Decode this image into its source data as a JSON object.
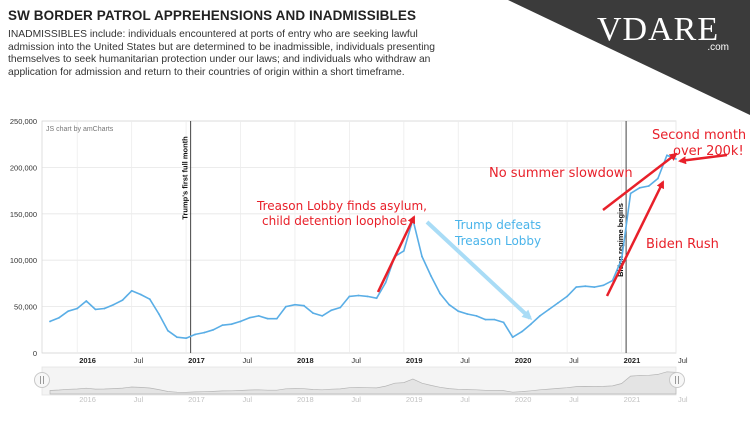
{
  "header": {
    "title": "SW BORDER PATROL APPREHENSIONS AND INADMISSIBLES",
    "description": "INADMISSIBLES include: individuals encountered at ports of entry who are seeking lawful admission into the United States but are determined to be inadmissible, individuals presenting themselves to seek humanitarian protection under our laws; and individuals who withdraw an application for admission and return to their countries of origin within a short timeframe."
  },
  "logo": {
    "name": "VDARE",
    "suffix": ".com",
    "colors": {
      "banner": "#3b3b3b",
      "text": "#ffffff"
    }
  },
  "chart_data": {
    "type": "line",
    "credit": "JS chart by amCharts",
    "x_start": "2015-10",
    "x_step": "month",
    "ylim": [
      0,
      250000
    ],
    "yticks": [
      "0",
      "50,000",
      "100,000",
      "150,000",
      "200,000",
      "250,000"
    ],
    "xticks": [
      {
        "label": "2016",
        "date": "2016-01",
        "bold": true
      },
      {
        "label": "Jul",
        "date": "2016-07",
        "bold": false
      },
      {
        "label": "2017",
        "date": "2017-01",
        "bold": true
      },
      {
        "label": "Jul",
        "date": "2017-07",
        "bold": false
      },
      {
        "label": "2018",
        "date": "2018-01",
        "bold": true
      },
      {
        "label": "Jul",
        "date": "2018-07",
        "bold": false
      },
      {
        "label": "2019",
        "date": "2019-01",
        "bold": true
      },
      {
        "label": "Jul",
        "date": "2019-07",
        "bold": false
      },
      {
        "label": "2020",
        "date": "2020-01",
        "bold": true
      },
      {
        "label": "Jul",
        "date": "2020-07",
        "bold": false
      },
      {
        "label": "2021",
        "date": "2021-01",
        "bold": true
      },
      {
        "label": "Jul",
        "date": "2021-07",
        "bold": false
      }
    ],
    "series": [
      {
        "color": "#5aaee6",
        "values": [
          34000,
          38000,
          45000,
          48000,
          56000,
          47000,
          48000,
          52000,
          57000,
          67000,
          63000,
          58000,
          42000,
          24000,
          17000,
          16000,
          20000,
          22000,
          25000,
          30000,
          31000,
          34000,
          38000,
          40000,
          37000,
          37000,
          50000,
          52000,
          51000,
          43000,
          40000,
          46000,
          49000,
          61000,
          62000,
          61000,
          59000,
          76000,
          104000,
          110000,
          144000,
          104000,
          83000,
          64000,
          52000,
          45000,
          42000,
          40000,
          36000,
          36000,
          33000,
          17000,
          23000,
          31000,
          40000,
          47000,
          54000,
          61000,
          71000,
          72000,
          71000,
          73000,
          78000,
          101000,
          172000,
          178000,
          180000,
          188000,
          213000,
          209000
        ]
      }
    ],
    "markers": [
      {
        "date": "2017-02",
        "label": "Trump's first full month"
      },
      {
        "date": "2021-02",
        "label": "Biden regime begins"
      }
    ],
    "annotations": [
      {
        "id": "asylum-line1",
        "text": "Treason Lobby finds asylum,",
        "color": "#e8202a"
      },
      {
        "id": "asylum-line2",
        "text": "child detention loophole",
        "color": "#e8202a"
      },
      {
        "id": "trump-line1",
        "text": "Trump defeats",
        "color": "#4ab4ea"
      },
      {
        "id": "trump-line2",
        "text": "Treason Lobby",
        "color": "#4ab4ea"
      },
      {
        "id": "summer",
        "text": "No summer slowdown",
        "color": "#e8202a"
      },
      {
        "id": "second-line1",
        "text": "Second month",
        "color": "#e8202a"
      },
      {
        "id": "second-line2",
        "text": "over 200k!",
        "color": "#e8202a"
      },
      {
        "id": "biden-rush",
        "text": "Biden Rush",
        "color": "#e8202a"
      }
    ],
    "scrollbar_labels": [
      "2016",
      "Jul",
      "2017",
      "Jul",
      "2018",
      "Jul",
      "2019",
      "Jul",
      "2020",
      "Jul",
      "2021",
      "Jul"
    ]
  }
}
